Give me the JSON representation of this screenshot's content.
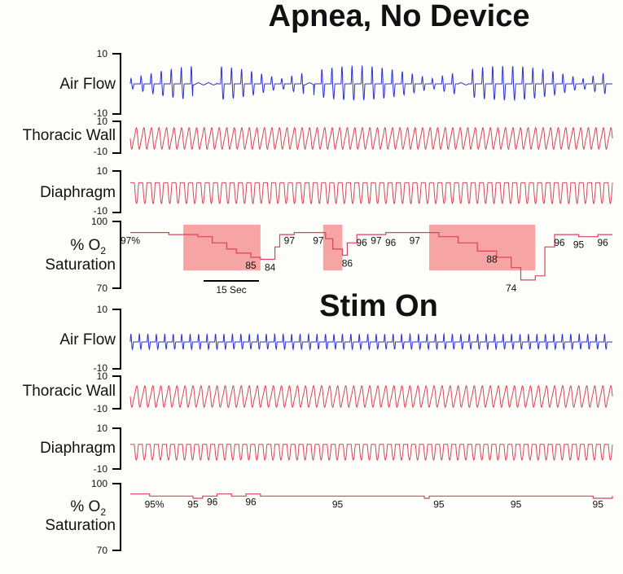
{
  "colors": {
    "airflow": "#2b2fd6",
    "effort": "#d9445a",
    "spo2_line": "#d9445a",
    "highlight": "#f59a9a",
    "axis": "#000000"
  },
  "panels": [
    {
      "title": "Apnea, No Device",
      "channels": [
        {
          "label": "Air Flow",
          "top_tick": "10",
          "bottom_tick": "-10"
        },
        {
          "label": "Thoracic Wall",
          "top_tick": "10",
          "bottom_tick": "-10"
        },
        {
          "label": "Diaphragm",
          "top_tick": "10",
          "bottom_tick": "-10"
        }
      ],
      "spo2": {
        "label_pct": "% O",
        "label_sub": "2",
        "label2": "Saturation",
        "top_tick": "100",
        "bottom_tick": "70"
      },
      "scale_bar": "15 Sec"
    },
    {
      "title": "Stim On",
      "channels": [
        {
          "label": "Air Flow",
          "top_tick": "10",
          "bottom_tick": "-10"
        },
        {
          "label": "Thoracic Wall",
          "top_tick": "10",
          "bottom_tick": "-10"
        },
        {
          "label": "Diaphragm",
          "top_tick": "10",
          "bottom_tick": "-10"
        }
      ],
      "spo2": {
        "label_pct": "% O",
        "label_sub": "2",
        "label2": "Saturation",
        "top_tick": "100",
        "bottom_tick": "70"
      }
    }
  ],
  "chart_data": [
    {
      "type": "line",
      "title": "Apnea, No Device",
      "series_names": [
        "Air Flow",
        "Thoracic Wall",
        "Diaphragm",
        "% O2 Saturation"
      ],
      "signal_ylim": [
        -10,
        10
      ],
      "spo2_ylim": [
        70,
        100
      ],
      "apnea_segments": [
        [
          0.13,
          0.18
        ],
        [
          0.36,
          0.38
        ],
        [
          0.68,
          0.7
        ]
      ],
      "spo2_points": [
        {
          "t": 0.0,
          "v": 97
        },
        {
          "t": 0.07,
          "v": 97
        },
        {
          "t": 0.08,
          "v": 96
        },
        {
          "t": 0.12,
          "v": 96
        },
        {
          "t": 0.14,
          "v": 95
        },
        {
          "t": 0.17,
          "v": 92
        },
        {
          "t": 0.2,
          "v": 89
        },
        {
          "t": 0.22,
          "v": 87
        },
        {
          "t": 0.25,
          "v": 85
        },
        {
          "t": 0.27,
          "v": 84
        },
        {
          "t": 0.285,
          "v": 84
        },
        {
          "t": 0.3,
          "v": 90
        },
        {
          "t": 0.31,
          "v": 96
        },
        {
          "t": 0.34,
          "v": 97
        },
        {
          "t": 0.4,
          "v": 97
        },
        {
          "t": 0.405,
          "v": 94
        },
        {
          "t": 0.42,
          "v": 89
        },
        {
          "t": 0.44,
          "v": 86
        },
        {
          "t": 0.45,
          "v": 92
        },
        {
          "t": 0.47,
          "v": 96
        },
        {
          "t": 0.51,
          "v": 96
        },
        {
          "t": 0.53,
          "v": 97
        },
        {
          "t": 0.6,
          "v": 97
        },
        {
          "t": 0.64,
          "v": 95
        },
        {
          "t": 0.68,
          "v": 92
        },
        {
          "t": 0.72,
          "v": 88
        },
        {
          "t": 0.76,
          "v": 85
        },
        {
          "t": 0.79,
          "v": 80
        },
        {
          "t": 0.81,
          "v": 74
        },
        {
          "t": 0.84,
          "v": 76
        },
        {
          "t": 0.86,
          "v": 90
        },
        {
          "t": 0.88,
          "v": 96
        },
        {
          "t": 0.93,
          "v": 95
        },
        {
          "t": 0.97,
          "v": 96
        },
        {
          "t": 1.0,
          "v": 96
        }
      ],
      "highlight_boxes": [
        [
          0.11,
          0.27
        ],
        [
          0.4,
          0.44
        ],
        [
          0.62,
          0.84
        ]
      ],
      "spo2_labels": [
        {
          "t": 0.0,
          "v": 97,
          "text": "97%"
        },
        {
          "t": 0.25,
          "v": 85,
          "text": "85"
        },
        {
          "t": 0.29,
          "v": 84,
          "text": "84"
        },
        {
          "t": 0.33,
          "v": 97,
          "text": "97"
        },
        {
          "t": 0.39,
          "v": 97,
          "text": "97"
        },
        {
          "t": 0.45,
          "v": 86,
          "text": "86"
        },
        {
          "t": 0.48,
          "v": 96,
          "text": "96"
        },
        {
          "t": 0.51,
          "v": 97,
          "text": "97"
        },
        {
          "t": 0.54,
          "v": 96,
          "text": "96"
        },
        {
          "t": 0.59,
          "v": 97,
          "text": "97"
        },
        {
          "t": 0.75,
          "v": 88,
          "text": "88"
        },
        {
          "t": 0.79,
          "v": 74,
          "text": "74"
        },
        {
          "t": 0.89,
          "v": 96,
          "text": "96"
        },
        {
          "t": 0.93,
          "v": 95,
          "text": "95"
        },
        {
          "t": 0.98,
          "v": 96,
          "text": "96"
        }
      ]
    },
    {
      "type": "line",
      "title": "Stim On",
      "series_names": [
        "Air Flow",
        "Thoracic Wall",
        "Diaphragm",
        "% O2 Saturation"
      ],
      "signal_ylim": [
        -10,
        10
      ],
      "spo2_ylim": [
        70,
        100
      ],
      "spo2_points": [
        {
          "t": 0.0,
          "v": 96
        },
        {
          "t": 0.04,
          "v": 95
        },
        {
          "t": 0.12,
          "v": 95
        },
        {
          "t": 0.13,
          "v": 94
        },
        {
          "t": 0.15,
          "v": 95
        },
        {
          "t": 0.18,
          "v": 96
        },
        {
          "t": 0.21,
          "v": 95
        },
        {
          "t": 0.24,
          "v": 96
        },
        {
          "t": 0.27,
          "v": 95
        },
        {
          "t": 0.6,
          "v": 95
        },
        {
          "t": 0.61,
          "v": 94
        },
        {
          "t": 0.62,
          "v": 95
        },
        {
          "t": 0.95,
          "v": 95
        },
        {
          "t": 0.96,
          "v": 94
        },
        {
          "t": 1.0,
          "v": 95
        }
      ],
      "spo2_labels": [
        {
          "t": 0.05,
          "v": 95,
          "text": "95%"
        },
        {
          "t": 0.13,
          "v": 95,
          "text": "95"
        },
        {
          "t": 0.17,
          "v": 96,
          "text": "96"
        },
        {
          "t": 0.25,
          "v": 96,
          "text": "96"
        },
        {
          "t": 0.43,
          "v": 95,
          "text": "95"
        },
        {
          "t": 0.64,
          "v": 95,
          "text": "95"
        },
        {
          "t": 0.8,
          "v": 95,
          "text": "95"
        },
        {
          "t": 0.97,
          "v": 95,
          "text": "95"
        }
      ]
    }
  ]
}
